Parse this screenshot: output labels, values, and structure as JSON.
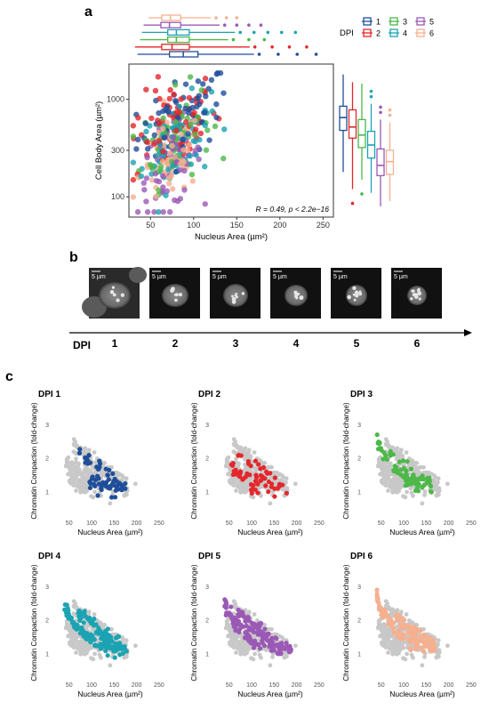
{
  "panels": {
    "a": "a",
    "b": "b",
    "c": "c"
  },
  "colors": {
    "1": "#1f4e9a",
    "2": "#e5262b",
    "3": "#4cb848",
    "4": "#1aa3b3",
    "5": "#9b59b6",
    "6": "#f5b090",
    "grey": "#c8c8c8"
  },
  "chart_data": [
    {
      "type": "scatter",
      "panel": "a",
      "xlabel": "Nucleus Area (µm²)",
      "ylabel": "Cell Body Area (µm²)",
      "x_ticks": [
        "50",
        "100",
        "150",
        "200",
        "250"
      ],
      "y_ticks": [
        "100",
        "300",
        "1000"
      ],
      "y_scale": "log10",
      "xlim": [
        25,
        262
      ],
      "ylim": [
        62,
        2300
      ],
      "grid": false,
      "annotation": "R = 0.49, p < 2.2e−16",
      "legend": {
        "title": "DPI",
        "entries": [
          "1",
          "2",
          "3",
          "4",
          "5",
          "6"
        ],
        "placement": "top-right"
      },
      "series": [
        {
          "name": "1",
          "nucleus_box": [
            35,
            72,
            88,
            105,
            170
          ],
          "cellbody_box": [
            180,
            480,
            650,
            850,
            1800
          ]
        },
        {
          "name": "2",
          "nucleus_box": [
            32,
            63,
            75,
            95,
            165
          ],
          "cellbody_box": [
            120,
            400,
            520,
            780,
            1500
          ]
        },
        {
          "name": "3",
          "nucleus_box": [
            38,
            70,
            80,
            95,
            140
          ],
          "cellbody_box": [
            150,
            320,
            430,
            620,
            1450
          ]
        },
        {
          "name": "4",
          "nucleus_box": [
            40,
            70,
            80,
            95,
            148
          ],
          "cellbody_box": [
            110,
            250,
            340,
            470,
            900
          ]
        },
        {
          "name": "5",
          "nucleus_box": [
            42,
            62,
            72,
            85,
            130
          ],
          "cellbody_box": [
            80,
            165,
            210,
            310,
            620
          ]
        },
        {
          "name": "6",
          "nucleus_box": [
            48,
            63,
            73,
            85,
            120
          ],
          "cellbody_box": [
            90,
            170,
            230,
            300,
            580
          ]
        }
      ]
    },
    {
      "type": "scatter",
      "panel": "c",
      "xlabel": "Nucleus Area (µm²)",
      "ylabel": "Chromatin Compaction (fold-change)",
      "x_ticks": [
        "50",
        "100",
        "150",
        "200",
        "250"
      ],
      "y_ticks": [
        "1",
        "2",
        "3"
      ],
      "xlim": [
        15,
        268
      ],
      "ylim": [
        0.25,
        3.6
      ],
      "grid": false,
      "subplots": [
        "DPI 1",
        "DPI 2",
        "DPI 3",
        "DPI 4",
        "DPI 5",
        "DPI 6"
      ],
      "grey_background": "all DPI pooled"
    }
  ],
  "panel_b": {
    "scale_label": "5 µm",
    "axis_label": "DPI",
    "ticks": [
      "1",
      "2",
      "3",
      "4",
      "5",
      "6"
    ]
  }
}
